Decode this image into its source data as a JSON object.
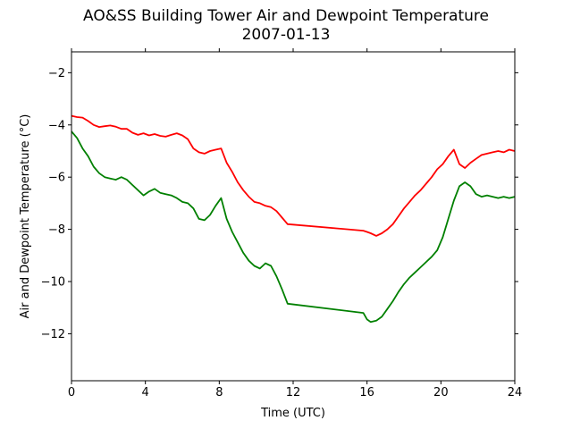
{
  "chart_data": {
    "type": "line",
    "title": "AO&SS Building Tower Air and Dewpoint Temperature",
    "subtitle": "2007-01-13",
    "xlabel": "Time (UTC)",
    "ylabel": "Air and Dewpoint Temperature (°C)",
    "xlim": [
      0,
      24
    ],
    "ylim": [
      -13.8,
      -1.2
    ],
    "xticks": [
      0,
      4,
      8,
      12,
      16,
      20,
      24
    ],
    "xtick_labels": [
      "0",
      "4",
      "8",
      "12",
      "16",
      "20",
      "24"
    ],
    "yticks": [
      -2,
      -4,
      -6,
      -8,
      -10,
      -12
    ],
    "ytick_labels": [
      "−2",
      "−4",
      "−6",
      "−8",
      "−10",
      "−12"
    ],
    "grid": false,
    "series": [
      {
        "color": "#ff0000",
        "x": [
          0,
          0.3,
          0.6,
          0.9,
          1.2,
          1.5,
          1.8,
          2.1,
          2.4,
          2.7,
          3.0,
          3.3,
          3.6,
          3.9,
          4.2,
          4.5,
          4.8,
          5.1,
          5.4,
          5.7,
          6.0,
          6.3,
          6.6,
          6.9,
          7.2,
          7.5,
          7.8,
          8.1,
          8.4,
          8.7,
          9.0,
          9.3,
          9.6,
          9.9,
          10.2,
          10.5,
          10.8,
          11.1,
          11.4,
          11.7,
          15.8,
          16.0,
          16.2,
          16.5,
          16.8,
          17.1,
          17.4,
          17.7,
          18.0,
          18.3,
          18.6,
          18.9,
          19.2,
          19.5,
          19.8,
          20.1,
          20.4,
          20.7,
          21.0,
          21.3,
          21.6,
          21.9,
          22.2,
          22.5,
          22.8,
          23.1,
          23.4,
          23.7,
          24.0
        ],
        "y": [
          -3.65,
          -3.7,
          -3.72,
          -3.85,
          -4.0,
          -4.08,
          -4.05,
          -4.02,
          -4.07,
          -4.15,
          -4.15,
          -4.3,
          -4.38,
          -4.32,
          -4.4,
          -4.35,
          -4.42,
          -4.45,
          -4.38,
          -4.32,
          -4.4,
          -4.55,
          -4.9,
          -5.05,
          -5.1,
          -5.0,
          -4.95,
          -4.9,
          -5.45,
          -5.8,
          -6.2,
          -6.5,
          -6.75,
          -6.95,
          -7.0,
          -7.1,
          -7.15,
          -7.3,
          -7.55,
          -7.8,
          -8.05,
          -8.1,
          -8.15,
          -8.25,
          -8.15,
          -8.0,
          -7.8,
          -7.5,
          -7.2,
          -6.95,
          -6.7,
          -6.5,
          -6.25,
          -6.0,
          -5.7,
          -5.5,
          -5.2,
          -4.95,
          -5.5,
          -5.65,
          -5.45,
          -5.3,
          -5.15,
          -5.1,
          -5.05,
          -5.0,
          -5.05,
          -4.95,
          -5.0
        ]
      },
      {
        "color": "#008000",
        "x": [
          0,
          0.3,
          0.6,
          0.9,
          1.2,
          1.5,
          1.8,
          2.1,
          2.4,
          2.7,
          3.0,
          3.3,
          3.6,
          3.9,
          4.2,
          4.5,
          4.8,
          5.1,
          5.4,
          5.7,
          6.0,
          6.3,
          6.6,
          6.9,
          7.2,
          7.5,
          7.8,
          8.1,
          8.4,
          8.7,
          9.0,
          9.3,
          9.6,
          9.9,
          10.2,
          10.5,
          10.8,
          11.1,
          11.4,
          11.7,
          15.8,
          16.0,
          16.2,
          16.5,
          16.8,
          17.1,
          17.4,
          17.7,
          18.0,
          18.3,
          18.6,
          18.9,
          19.2,
          19.5,
          19.8,
          20.1,
          20.4,
          20.7,
          21.0,
          21.3,
          21.6,
          21.9,
          22.2,
          22.5,
          22.8,
          23.1,
          23.4,
          23.7,
          24.0
        ],
        "y": [
          -4.25,
          -4.5,
          -4.9,
          -5.2,
          -5.6,
          -5.85,
          -6.0,
          -6.05,
          -6.1,
          -6.0,
          -6.1,
          -6.3,
          -6.5,
          -6.7,
          -6.55,
          -6.45,
          -6.6,
          -6.65,
          -6.7,
          -6.8,
          -6.95,
          -7.0,
          -7.2,
          -7.6,
          -7.65,
          -7.45,
          -7.1,
          -6.8,
          -7.6,
          -8.1,
          -8.5,
          -8.9,
          -9.2,
          -9.4,
          -9.5,
          -9.3,
          -9.4,
          -9.8,
          -10.3,
          -10.85,
          -11.2,
          -11.45,
          -11.55,
          -11.5,
          -11.35,
          -11.05,
          -10.75,
          -10.4,
          -10.1,
          -9.85,
          -9.65,
          -9.45,
          -9.25,
          -9.05,
          -8.8,
          -8.3,
          -7.6,
          -6.9,
          -6.35,
          -6.2,
          -6.35,
          -6.65,
          -6.75,
          -6.7,
          -6.75,
          -6.8,
          -6.75,
          -6.8,
          -6.75
        ]
      }
    ]
  }
}
